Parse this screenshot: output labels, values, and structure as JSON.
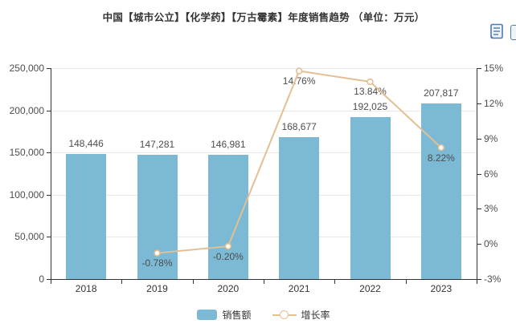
{
  "title": "中国【城市公立】【化学药】【万古霉素】年度销售趋势 （单位：万元）",
  "toolbox": {
    "icons": [
      "data-view",
      "clipped-edge-icon"
    ]
  },
  "legend": [
    {
      "label": "销售额",
      "type": "bar"
    },
    {
      "label": "增长率",
      "type": "line"
    }
  ],
  "colors": {
    "bar": "#7cb9d5",
    "line": "#e3bf94",
    "marker_fill": "#ffffff",
    "label_text": "#4d4d4d",
    "axis": "#333333",
    "grid": "#e9e9e9",
    "toolbox_icon": "#4a7cb3"
  },
  "chart_data": {
    "type": "bar",
    "categories": [
      "2018",
      "2019",
      "2020",
      "2021",
      "2022",
      "2023"
    ],
    "series": [
      {
        "name": "销售额",
        "type": "bar",
        "yaxis": "left",
        "values": [
          148446,
          147281,
          146981,
          168677,
          192025,
          207817
        ],
        "labels": [
          "148,446",
          "147,281",
          "146,981",
          "168,677",
          "192,025",
          "207,817"
        ]
      },
      {
        "name": "增长率",
        "type": "line",
        "yaxis": "right",
        "values": [
          null,
          -0.78,
          -0.2,
          14.76,
          13.84,
          8.22
        ],
        "labels": [
          null,
          "-0.78%",
          "-0.20%",
          "14.76%",
          "13.84%",
          "8.22%"
        ]
      }
    ],
    "left_axis": {
      "min": 0,
      "max": 250000,
      "tick_labels": [
        "0",
        "50,000",
        "100,000",
        "150,000",
        "200,000",
        "250,000"
      ]
    },
    "right_axis": {
      "min": -3,
      "max": 15,
      "tick_labels": [
        "-3%",
        "0%",
        "3%",
        "6%",
        "9%",
        "12%",
        "15%"
      ]
    },
    "grid": true,
    "legend_position": "bottom",
    "value_labels_shown": true
  }
}
